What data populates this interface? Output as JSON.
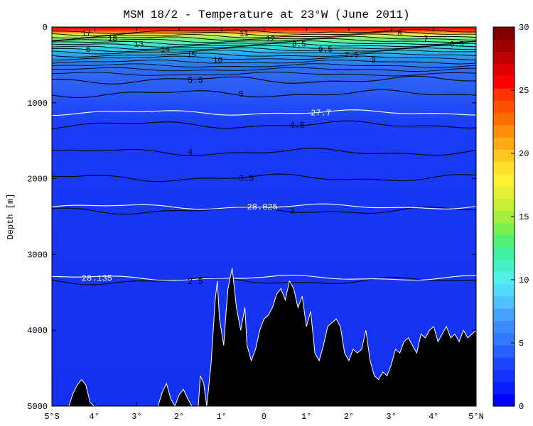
{
  "chart_data": {
    "type": "heatmap",
    "title": "MSM 18/2 - Temperature at 23°W (June 2011)",
    "xlabel": "",
    "ylabel": "Depth [m]",
    "x_range": [
      -5,
      5
    ],
    "y_range": [
      0,
      5000
    ],
    "y_reversed": true,
    "x_ticks": [
      {
        "value": -5,
        "label": "5°S"
      },
      {
        "value": -4,
        "label": "4°"
      },
      {
        "value": -3,
        "label": "3°"
      },
      {
        "value": -2,
        "label": "2°"
      },
      {
        "value": -1,
        "label": "1°"
      },
      {
        "value": 0,
        "label": "0"
      },
      {
        "value": 1,
        "label": "1°"
      },
      {
        "value": 2,
        "label": "2°"
      },
      {
        "value": 3,
        "label": "3°"
      },
      {
        "value": 4,
        "label": "4°"
      },
      {
        "value": 5,
        "label": "5°N"
      }
    ],
    "y_ticks": [
      0,
      1000,
      2000,
      3000,
      4000,
      5000
    ],
    "colorbar": {
      "range": [
        0,
        30
      ],
      "ticks": [
        0,
        5,
        10,
        15,
        20,
        25,
        30
      ],
      "colors": [
        "#0000ff",
        "#0a1eff",
        "#1432ff",
        "#1e46ff",
        "#2860ff",
        "#3278ff",
        "#3c8cff",
        "#46a0ff",
        "#50c0ff",
        "#50dcff",
        "#50f0e8",
        "#46f0c8",
        "#3cf0a0",
        "#50f078",
        "#78f050",
        "#a0f03c",
        "#c8f032",
        "#e6f032",
        "#fff032",
        "#ffe028",
        "#ffc81e",
        "#ffaa14",
        "#ff8c0a",
        "#ff6e00",
        "#ff5000",
        "#ff3200",
        "#ff0000",
        "#e00000",
        "#c00000",
        "#a00000",
        "#800000"
      ]
    },
    "isotherms": [
      {
        "label": "5.5",
        "depth_m": 700
      },
      {
        "label": "5",
        "depth_m": 880
      },
      {
        "label": "4.5",
        "depth_m": 1290
      },
      {
        "label": "4",
        "depth_m": 1650
      },
      {
        "label": "3.5",
        "depth_m": 1990
      },
      {
        "label": "3",
        "depth_m": 2420
      },
      {
        "label": "2.5",
        "depth_m": 3350
      }
    ],
    "density_contours": [
      {
        "label": "27.7",
        "depth_m": 1130
      },
      {
        "label": "28.025",
        "depth_m": 2370
      },
      {
        "label": "28.135",
        "depth_m": 3310
      }
    ],
    "upper_ocean_labels": [
      "17",
      "18",
      "13",
      "14",
      "15",
      "10",
      "11",
      "12",
      "8.5",
      "9.5",
      "7.5",
      "9",
      "8",
      "7",
      "6.5",
      "6"
    ],
    "bathymetry": [
      [
        -5.0,
        5000
      ],
      [
        -4.6,
        5000
      ],
      [
        -4.5,
        4830
      ],
      [
        -4.4,
        4720
      ],
      [
        -4.3,
        4650
      ],
      [
        -4.2,
        4720
      ],
      [
        -4.1,
        4950
      ],
      [
        -4.0,
        5000
      ],
      [
        -2.5,
        5000
      ],
      [
        -2.4,
        4820
      ],
      [
        -2.3,
        4700
      ],
      [
        -2.2,
        4900
      ],
      [
        -2.1,
        5000
      ],
      [
        -2.0,
        4850
      ],
      [
        -1.9,
        4780
      ],
      [
        -1.8,
        4900
      ],
      [
        -1.7,
        5000
      ],
      [
        -1.55,
        5000
      ],
      [
        -1.5,
        4600
      ],
      [
        -1.42,
        4700
      ],
      [
        -1.35,
        5000
      ],
      [
        -1.25,
        4450
      ],
      [
        -1.15,
        3600
      ],
      [
        -1.1,
        3350
      ],
      [
        -1.05,
        3850
      ],
      [
        -0.95,
        4200
      ],
      [
        -0.9,
        3800
      ],
      [
        -0.85,
        3450
      ],
      [
        -0.75,
        3180
      ],
      [
        -0.65,
        3700
      ],
      [
        -0.55,
        4000
      ],
      [
        -0.45,
        3700
      ],
      [
        -0.4,
        4200
      ],
      [
        -0.3,
        4400
      ],
      [
        -0.2,
        4250
      ],
      [
        -0.1,
        4000
      ],
      [
        0.0,
        3850
      ],
      [
        0.1,
        3800
      ],
      [
        0.2,
        3700
      ],
      [
        0.3,
        3520
      ],
      [
        0.4,
        3450
      ],
      [
        0.5,
        3600
      ],
      [
        0.6,
        3350
      ],
      [
        0.7,
        3450
      ],
      [
        0.8,
        3700
      ],
      [
        0.9,
        3550
      ],
      [
        1.0,
        3950
      ],
      [
        1.1,
        3750
      ],
      [
        1.2,
        4300
      ],
      [
        1.3,
        4400
      ],
      [
        1.4,
        4200
      ],
      [
        1.5,
        3950
      ],
      [
        1.6,
        3900
      ],
      [
        1.7,
        3850
      ],
      [
        1.8,
        3950
      ],
      [
        1.9,
        4300
      ],
      [
        2.0,
        4400
      ],
      [
        2.1,
        4250
      ],
      [
        2.2,
        4300
      ],
      [
        2.3,
        4250
      ],
      [
        2.4,
        4000
      ],
      [
        2.5,
        4400
      ],
      [
        2.6,
        4600
      ],
      [
        2.7,
        4650
      ],
      [
        2.8,
        4550
      ],
      [
        2.9,
        4600
      ],
      [
        3.0,
        4450
      ],
      [
        3.1,
        4250
      ],
      [
        3.2,
        4300
      ],
      [
        3.3,
        4150
      ],
      [
        3.4,
        4100
      ],
      [
        3.5,
        4200
      ],
      [
        3.6,
        4300
      ],
      [
        3.7,
        4050
      ],
      [
        3.8,
        4100
      ],
      [
        3.9,
        4000
      ],
      [
        4.0,
        3950
      ],
      [
        4.1,
        4150
      ],
      [
        4.2,
        4050
      ],
      [
        4.3,
        3950
      ],
      [
        4.4,
        4100
      ],
      [
        4.5,
        4050
      ],
      [
        4.6,
        4150
      ],
      [
        4.7,
        4000
      ],
      [
        4.8,
        4100
      ],
      [
        4.9,
        4050
      ],
      [
        5.0,
        4000
      ],
      [
        5.0,
        5000
      ]
    ]
  }
}
